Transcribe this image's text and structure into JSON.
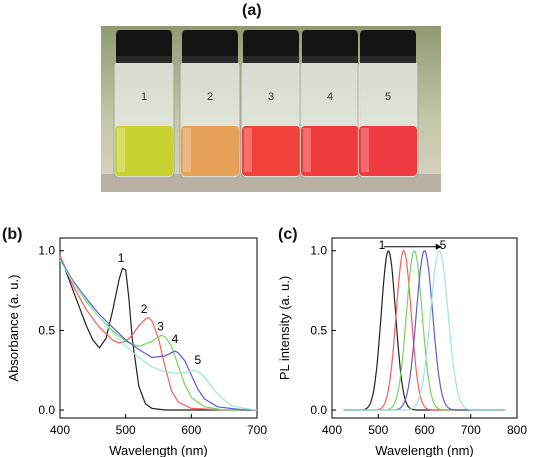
{
  "panels": {
    "a": "(a)",
    "b": "(b)",
    "c": "(c)"
  },
  "photo": {
    "vial_labels": [
      "1",
      "2",
      "3",
      "4",
      "5"
    ],
    "liquid_colors": [
      "#c8d332",
      "#e7a25a",
      "#f1413b",
      "#f13c3f",
      "#ef3a43"
    ],
    "cap_color": "#141414"
  },
  "chart_data": [
    {
      "type": "line",
      "panel": "(b)",
      "xlabel": "Wavelength (nm)",
      "ylabel": "Absorbance (a. u.)",
      "xlim": [
        400,
        700
      ],
      "ylim": [
        -0.05,
        1.08
      ],
      "xticks": [
        400,
        500,
        600,
        700
      ],
      "yticks": [
        0.0,
        0.5,
        1.0
      ],
      "ytick_labels": [
        "0.0",
        "0.5",
        "1.0"
      ],
      "grid": false,
      "series": [
        {
          "name": "1",
          "color": "#222222",
          "x": [
            400,
            410,
            420,
            430,
            440,
            450,
            460,
            470,
            480,
            490,
            495,
            500,
            505,
            510,
            520,
            530,
            540,
            560,
            600,
            700
          ],
          "y": [
            0.97,
            0.86,
            0.75,
            0.64,
            0.53,
            0.44,
            0.39,
            0.45,
            0.62,
            0.82,
            0.89,
            0.88,
            0.7,
            0.45,
            0.15,
            0.04,
            0.01,
            0.0,
            0.0,
            0.0
          ]
        },
        {
          "name": "2",
          "color": "#ff5a5a",
          "x": [
            400,
            420,
            440,
            460,
            480,
            490,
            500,
            510,
            520,
            530,
            535,
            540,
            550,
            560,
            570,
            580,
            600,
            650,
            700
          ],
          "y": [
            0.97,
            0.78,
            0.63,
            0.52,
            0.44,
            0.42,
            0.43,
            0.47,
            0.53,
            0.57,
            0.58,
            0.56,
            0.45,
            0.27,
            0.12,
            0.05,
            0.01,
            0.0,
            0.0
          ]
        },
        {
          "name": "3",
          "color": "#77d55f",
          "x": [
            400,
            420,
            440,
            460,
            480,
            500,
            520,
            540,
            550,
            555,
            560,
            570,
            580,
            590,
            600,
            620,
            650,
            700
          ],
          "y": [
            0.96,
            0.8,
            0.68,
            0.58,
            0.5,
            0.43,
            0.4,
            0.43,
            0.46,
            0.47,
            0.46,
            0.4,
            0.28,
            0.16,
            0.08,
            0.02,
            0.0,
            0.0
          ]
        },
        {
          "name": "4",
          "color": "#5c5cd6",
          "x": [
            400,
            420,
            440,
            460,
            480,
            500,
            520,
            540,
            560,
            570,
            575,
            580,
            590,
            600,
            610,
            620,
            640,
            680,
            700
          ],
          "y": [
            0.95,
            0.81,
            0.7,
            0.6,
            0.52,
            0.44,
            0.38,
            0.33,
            0.34,
            0.36,
            0.37,
            0.36,
            0.31,
            0.22,
            0.13,
            0.07,
            0.02,
            0.0,
            0.0
          ]
        },
        {
          "name": "5",
          "color": "#9de8cf",
          "x": [
            400,
            420,
            440,
            460,
            480,
            500,
            520,
            540,
            560,
            580,
            595,
            605,
            615,
            625,
            640,
            660,
            680,
            700
          ],
          "y": [
            0.94,
            0.8,
            0.69,
            0.58,
            0.49,
            0.4,
            0.33,
            0.27,
            0.24,
            0.23,
            0.24,
            0.25,
            0.23,
            0.18,
            0.1,
            0.03,
            0.01,
            0.0
          ]
        }
      ],
      "annotations": [
        {
          "text": "1",
          "x": 493,
          "y": 0.93
        },
        {
          "text": "2",
          "x": 528,
          "y": 0.61
        },
        {
          "text": "3",
          "x": 553,
          "y": 0.5
        },
        {
          "text": "4",
          "x": 575,
          "y": 0.42
        },
        {
          "text": "5",
          "x": 610,
          "y": 0.29
        }
      ]
    },
    {
      "type": "line",
      "panel": "(c)",
      "xlabel": "Wavelength (nm)",
      "ylabel": "PL intensity (a. u.)",
      "xlim": [
        400,
        800
      ],
      "ylim": [
        -0.05,
        1.08
      ],
      "xticks": [
        400,
        500,
        600,
        700,
        800
      ],
      "yticks": [
        0.0,
        0.5,
        1.0
      ],
      "ytick_labels": [
        "0.0",
        "0.5",
        "1.0"
      ],
      "grid": false,
      "series": [
        {
          "name": "1",
          "color": "#222222",
          "peak": 522,
          "width": 22
        },
        {
          "name": "2",
          "color": "#ff5a5a",
          "peak": 555,
          "width": 23
        },
        {
          "name": "3",
          "color": "#77d55f",
          "peak": 578,
          "width": 24
        },
        {
          "name": "4",
          "color": "#5c5cd6",
          "peak": 600,
          "width": 25
        },
        {
          "name": "5",
          "color": "#9de8cf",
          "peak": 632,
          "width": 27
        }
      ],
      "annotations": [
        {
          "text": "1",
          "x": 508,
          "y": 1.01
        },
        {
          "text": "5",
          "x": 640,
          "y": 1.01
        }
      ]
    }
  ]
}
